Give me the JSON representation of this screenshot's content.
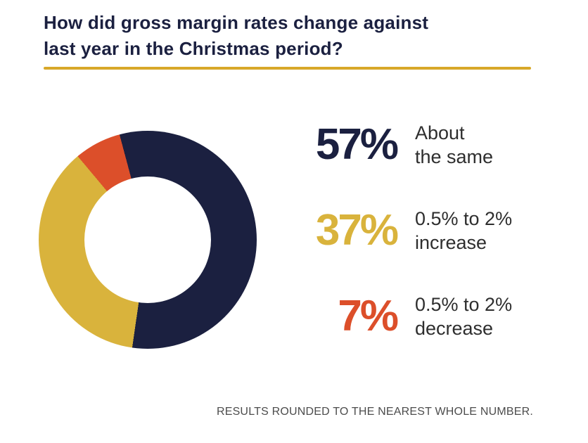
{
  "page": {
    "title_line1": "How did gross margin rates change against",
    "title_line2": "last year in the Christmas period?",
    "footnote": "RESULTS ROUNDED TO THE NEAREST WHOLE NUMBER."
  },
  "colors": {
    "title_navy": "#1b2040",
    "divider_gold": "#d8a829",
    "footnote_gray": "#4c4c4c",
    "background": "#ffffff"
  },
  "chart_data": {
    "type": "pie",
    "subtype": "donut",
    "title": "How did gross margin rates change against last year in the Christmas period?",
    "start_angle_deg": 345,
    "hole_ratio": 0.58,
    "legend_position": "right",
    "grid": false,
    "segments": [
      {
        "label": "About the same",
        "label_line1": "About",
        "label_line2": "the same",
        "value": 57,
        "pct_label": "57%",
        "color": "#1b2040"
      },
      {
        "label": "0.5% to 2% increase",
        "label_line1": "0.5% to 2%",
        "label_line2": "increase",
        "value": 37,
        "pct_label": "37%",
        "color": "#d9b33c"
      },
      {
        "label": "0.5% to 2% decrease",
        "label_line1": "0.5% to 2%",
        "label_line2": "decrease",
        "value": 7,
        "pct_label": "7%",
        "color": "#dc4f2a"
      }
    ],
    "footnote": "RESULTS ROUNDED TO THE NEAREST WHOLE NUMBER."
  }
}
